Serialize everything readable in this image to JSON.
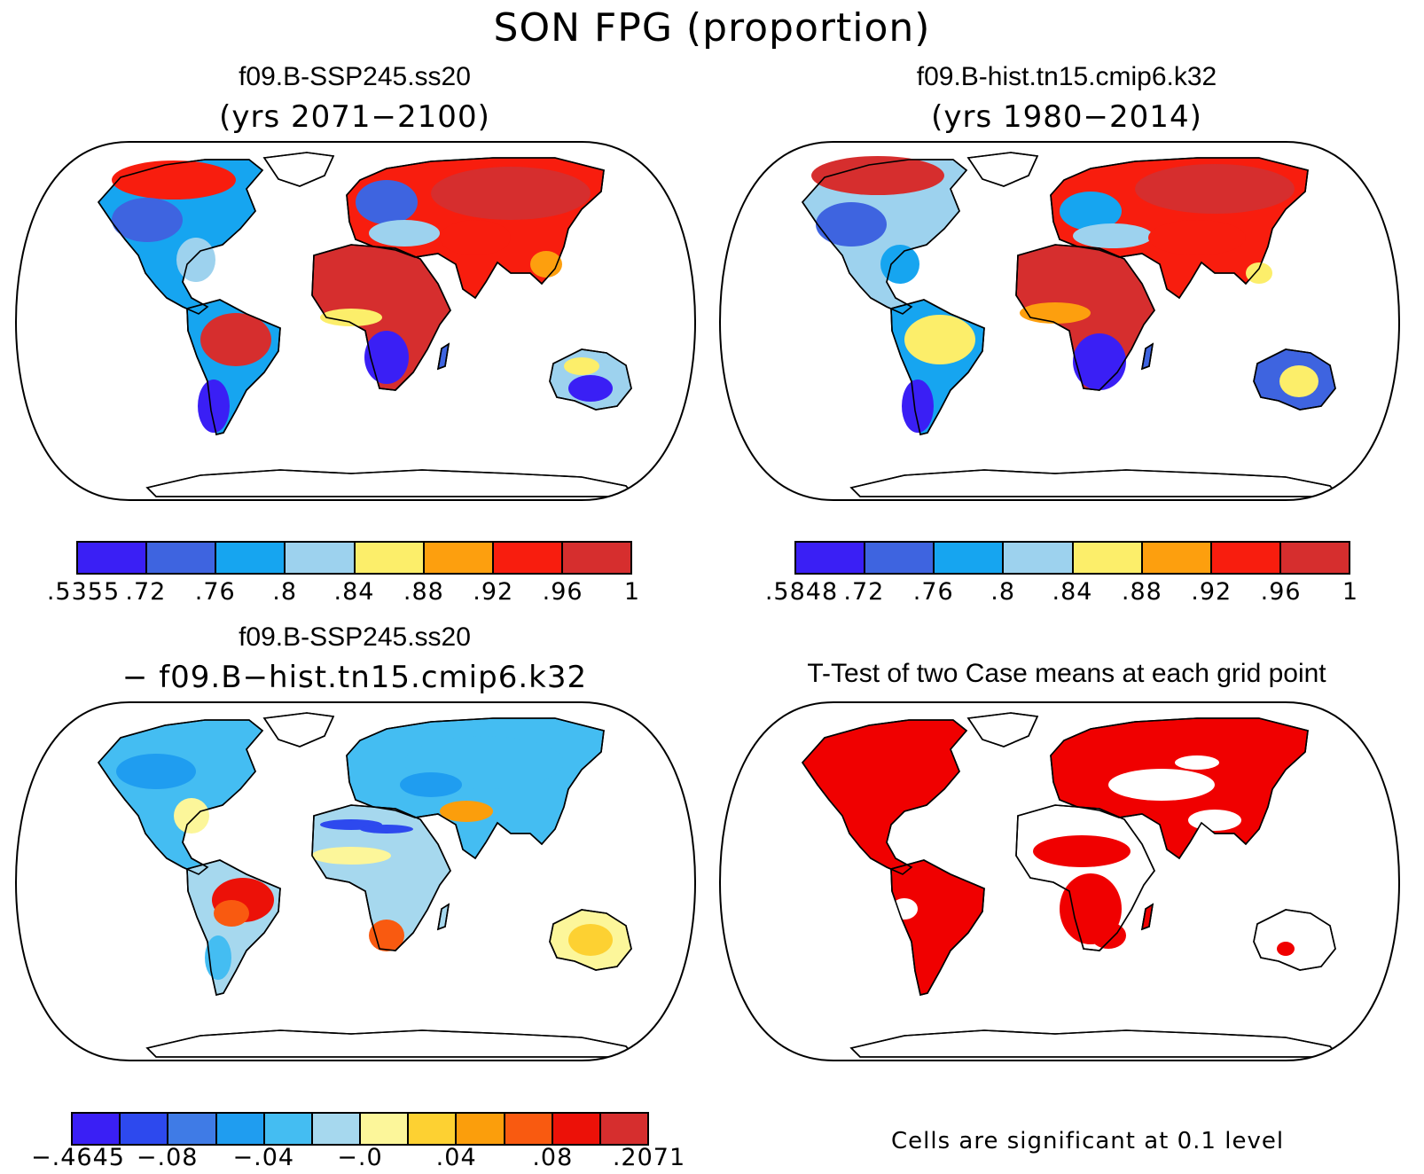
{
  "title": "SON FPG (proportion)",
  "panels": [
    {
      "title": "f09.B-SSP245.ss20",
      "subtitle": "(yrs 2071−2100)"
    },
    {
      "title": "f09.B-hist.tn15.cmip6.k32",
      "subtitle": "(yrs 1980−2014)"
    },
    {
      "title": "f09.B-SSP245.ss20",
      "subtitle": "− f09.B−hist.tn15.cmip6.k32"
    },
    {
      "title": "T-Test of two Case means at each grid point",
      "subtitle": ""
    }
  ],
  "colorbars": [
    {
      "colors": [
        "#3a1ff5",
        "#3e64e0",
        "#16a5f0",
        "#9dd2ee",
        "#fcee6a",
        "#fd9f0e",
        "#f81d0e",
        "#d62e2e"
      ],
      "labels": [
        ".5355",
        ".72",
        ".76",
        ".8",
        ".84",
        ".88",
        ".92",
        ".96",
        "1"
      ]
    },
    {
      "colors": [
        "#3a1ff5",
        "#3e64e0",
        "#16a5f0",
        "#9dd2ee",
        "#fcee6a",
        "#fd9f0e",
        "#f81d0e",
        "#d62e2e"
      ],
      "labels": [
        ".5848",
        ".72",
        ".76",
        ".8",
        ".84",
        ".88",
        ".92",
        ".96",
        "1"
      ]
    },
    {
      "colors": [
        "#3a1ff5",
        "#2d49ee",
        "#3f7be6",
        "#1f9df0",
        "#44bdf2",
        "#a6d8ee",
        "#fcf69a",
        "#fdd132",
        "#fb9e0c",
        "#f95a10",
        "#ec1108",
        "#d62e2e"
      ],
      "labels": [
        "−.4645",
        "−.08",
        "−.04",
        "−.0",
        ".04",
        ".08",
        ".2071"
      ]
    }
  ],
  "significance_note": "Cells are significant at 0.1 level"
}
